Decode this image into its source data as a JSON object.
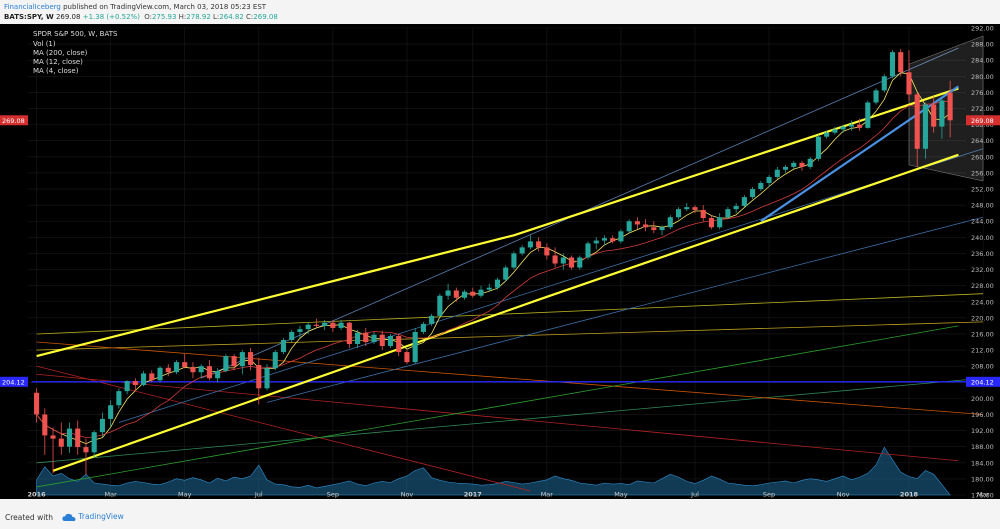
{
  "header": {
    "author": "FinancialIceberg",
    "published": "published on TradingView.com, March 03, 2018 05:23 EST",
    "symbol": "BATS:SPY, W",
    "last": "269.08",
    "change": "+1.38 (+0.52%)",
    "open_label": "O:",
    "open": "275.93",
    "high_label": "H:",
    "high": "278.92",
    "low_label": "L:",
    "low": "264.82",
    "close_label": "C:",
    "close": "269.08"
  },
  "legend": {
    "title": "SPDR S&P 500, W, BATS",
    "items": [
      "Vol (1)",
      "MA (200, close)",
      "MA (12, close)",
      "MA (4, close)"
    ]
  },
  "footer": {
    "created_with": "Created with",
    "brand": "TradingView"
  },
  "colors": {
    "background": "#000000",
    "grid": "#1a1a1a",
    "up": "#26a69a",
    "down": "#ef5350",
    "channel": "#ffff33",
    "trend_blue": "#4a90e2",
    "volume": "#1f6b99",
    "last_price_badge": "#d32f2f",
    "hline_badge": "#2929ff"
  },
  "chart_data": {
    "type": "candlestick",
    "timeframe": "W",
    "y_axis": {
      "min": 176,
      "max": 292,
      "step": 4,
      "side": "right"
    },
    "x_tick_labels": [
      "2016",
      "Mar",
      "May",
      "Jul",
      "Sep",
      "Nov",
      "2017",
      "Mar",
      "May",
      "Jul",
      "Sep",
      "Nov",
      "2018",
      "Mar"
    ],
    "price_badges": [
      {
        "value": 269.08,
        "label": "269.08",
        "color": "#d32f2f"
      },
      {
        "value": 204.12,
        "label": "204.12",
        "color": "#2929ff"
      }
    ],
    "candles": [
      {
        "o": 201.4,
        "h": 202.5,
        "l": 194.0,
        "c": 196.0
      },
      {
        "o": 196.0,
        "h": 197.5,
        "l": 186.0,
        "c": 190.8
      },
      {
        "o": 190.8,
        "h": 192.8,
        "l": 181.3,
        "c": 190.0
      },
      {
        "o": 190.0,
        "h": 194.0,
        "l": 186.0,
        "c": 188.0
      },
      {
        "o": 188.0,
        "h": 194.0,
        "l": 186.5,
        "c": 192.5
      },
      {
        "o": 192.5,
        "h": 194.5,
        "l": 186.0,
        "c": 187.9
      },
      {
        "o": 187.9,
        "h": 190.0,
        "l": 181.0,
        "c": 186.6
      },
      {
        "o": 186.6,
        "h": 192.0,
        "l": 185.3,
        "c": 191.6
      },
      {
        "o": 191.6,
        "h": 196.5,
        "l": 190.5,
        "c": 194.9
      },
      {
        "o": 194.9,
        "h": 199.5,
        "l": 193.0,
        "c": 198.3
      },
      {
        "o": 198.3,
        "h": 202.5,
        "l": 197.5,
        "c": 201.8
      },
      {
        "o": 201.8,
        "h": 204.5,
        "l": 201.0,
        "c": 204.3
      },
      {
        "o": 204.3,
        "h": 205.0,
        "l": 201.8,
        "c": 203.3
      },
      {
        "o": 203.3,
        "h": 206.8,
        "l": 203.0,
        "c": 206.2
      },
      {
        "o": 206.2,
        "h": 207.0,
        "l": 204.0,
        "c": 204.5
      },
      {
        "o": 204.5,
        "h": 208.0,
        "l": 204.0,
        "c": 207.6
      },
      {
        "o": 207.6,
        "h": 208.5,
        "l": 205.5,
        "c": 206.5
      },
      {
        "o": 206.5,
        "h": 209.5,
        "l": 206.0,
        "c": 209.0
      },
      {
        "o": 209.0,
        "h": 211.0,
        "l": 207.5,
        "c": 207.8
      },
      {
        "o": 207.8,
        "h": 209.0,
        "l": 205.0,
        "c": 206.5
      },
      {
        "o": 206.5,
        "h": 208.5,
        "l": 205.0,
        "c": 208.0
      },
      {
        "o": 208.0,
        "h": 209.5,
        "l": 204.5,
        "c": 205.0
      },
      {
        "o": 205.0,
        "h": 207.5,
        "l": 204.0,
        "c": 206.8
      },
      {
        "o": 206.8,
        "h": 211.0,
        "l": 206.5,
        "c": 210.5
      },
      {
        "o": 210.5,
        "h": 211.0,
        "l": 207.0,
        "c": 208.0
      },
      {
        "o": 208.0,
        "h": 212.0,
        "l": 206.0,
        "c": 211.5
      },
      {
        "o": 211.5,
        "h": 212.5,
        "l": 207.0,
        "c": 208.3
      },
      {
        "o": 208.3,
        "h": 210.0,
        "l": 198.5,
        "c": 202.5
      },
      {
        "o": 202.5,
        "h": 208.5,
        "l": 202.0,
        "c": 207.5
      },
      {
        "o": 207.5,
        "h": 212.0,
        "l": 207.0,
        "c": 211.5
      },
      {
        "o": 211.5,
        "h": 215.0,
        "l": 211.0,
        "c": 214.5
      },
      {
        "o": 214.5,
        "h": 217.0,
        "l": 214.0,
        "c": 216.5
      },
      {
        "o": 216.5,
        "h": 218.0,
        "l": 215.0,
        "c": 217.2
      },
      {
        "o": 217.2,
        "h": 219.0,
        "l": 216.0,
        "c": 218.3
      },
      {
        "o": 218.3,
        "h": 219.8,
        "l": 217.5,
        "c": 218.0
      },
      {
        "o": 218.0,
        "h": 219.5,
        "l": 217.0,
        "c": 218.8
      },
      {
        "o": 218.8,
        "h": 219.5,
        "l": 216.5,
        "c": 217.5
      },
      {
        "o": 217.5,
        "h": 219.5,
        "l": 217.0,
        "c": 218.8
      },
      {
        "o": 218.8,
        "h": 219.0,
        "l": 212.5,
        "c": 213.5
      },
      {
        "o": 213.5,
        "h": 217.0,
        "l": 212.5,
        "c": 216.3
      },
      {
        "o": 216.3,
        "h": 217.5,
        "l": 213.0,
        "c": 214.0
      },
      {
        "o": 214.0,
        "h": 216.5,
        "l": 213.5,
        "c": 215.8
      },
      {
        "o": 215.8,
        "h": 216.8,
        "l": 212.0,
        "c": 213.0
      },
      {
        "o": 213.0,
        "h": 216.0,
        "l": 212.5,
        "c": 215.5
      },
      {
        "o": 215.5,
        "h": 216.0,
        "l": 210.5,
        "c": 211.5
      },
      {
        "o": 211.5,
        "h": 212.0,
        "l": 208.5,
        "c": 209.0
      },
      {
        "o": 209.0,
        "h": 217.5,
        "l": 208.5,
        "c": 216.5
      },
      {
        "o": 216.5,
        "h": 219.0,
        "l": 216.0,
        "c": 218.5
      },
      {
        "o": 218.5,
        "h": 221.0,
        "l": 218.0,
        "c": 220.5
      },
      {
        "o": 220.5,
        "h": 226.0,
        "l": 220.0,
        "c": 225.5
      },
      {
        "o": 225.5,
        "h": 228.5,
        "l": 224.5,
        "c": 226.8
      },
      {
        "o": 226.8,
        "h": 227.5,
        "l": 224.0,
        "c": 225.0
      },
      {
        "o": 225.0,
        "h": 227.0,
        "l": 224.5,
        "c": 226.5
      },
      {
        "o": 226.5,
        "h": 227.5,
        "l": 225.0,
        "c": 225.5
      },
      {
        "o": 225.5,
        "h": 228.0,
        "l": 225.0,
        "c": 227.0
      },
      {
        "o": 227.0,
        "h": 228.5,
        "l": 226.5,
        "c": 227.5
      },
      {
        "o": 227.5,
        "h": 230.0,
        "l": 227.0,
        "c": 229.5
      },
      {
        "o": 229.5,
        "h": 233.0,
        "l": 229.0,
        "c": 232.5
      },
      {
        "o": 232.5,
        "h": 236.5,
        "l": 232.0,
        "c": 236.0
      },
      {
        "o": 236.0,
        "h": 238.0,
        "l": 235.5,
        "c": 237.5
      },
      {
        "o": 237.5,
        "h": 240.5,
        "l": 237.0,
        "c": 239.0
      },
      {
        "o": 239.0,
        "h": 240.0,
        "l": 236.5,
        "c": 237.5
      },
      {
        "o": 237.5,
        "h": 238.5,
        "l": 234.5,
        "c": 235.5
      },
      {
        "o": 235.5,
        "h": 237.5,
        "l": 232.5,
        "c": 233.5
      },
      {
        "o": 233.5,
        "h": 236.0,
        "l": 232.0,
        "c": 235.0
      },
      {
        "o": 235.0,
        "h": 235.5,
        "l": 232.0,
        "c": 232.5
      },
      {
        "o": 232.5,
        "h": 235.5,
        "l": 232.0,
        "c": 235.0
      },
      {
        "o": 235.0,
        "h": 239.0,
        "l": 234.5,
        "c": 238.5
      },
      {
        "o": 238.5,
        "h": 240.0,
        "l": 237.0,
        "c": 239.2
      },
      {
        "o": 239.2,
        "h": 240.5,
        "l": 238.0,
        "c": 239.8
      },
      {
        "o": 239.8,
        "h": 240.5,
        "l": 238.5,
        "c": 239.0
      },
      {
        "o": 239.0,
        "h": 242.0,
        "l": 238.5,
        "c": 241.5
      },
      {
        "o": 241.5,
        "h": 244.5,
        "l": 241.0,
        "c": 244.0
      },
      {
        "o": 244.0,
        "h": 245.0,
        "l": 242.0,
        "c": 243.2
      },
      {
        "o": 243.2,
        "h": 244.5,
        "l": 241.5,
        "c": 242.5
      },
      {
        "o": 242.5,
        "h": 244.0,
        "l": 241.0,
        "c": 241.8
      },
      {
        "o": 241.8,
        "h": 243.0,
        "l": 240.5,
        "c": 242.5
      },
      {
        "o": 242.5,
        "h": 245.5,
        "l": 242.0,
        "c": 245.0
      },
      {
        "o": 245.0,
        "h": 247.5,
        "l": 244.5,
        "c": 247.0
      },
      {
        "o": 247.0,
        "h": 248.5,
        "l": 246.5,
        "c": 247.5
      },
      {
        "o": 247.5,
        "h": 248.0,
        "l": 246.0,
        "c": 246.8
      },
      {
        "o": 246.8,
        "h": 248.0,
        "l": 244.0,
        "c": 244.8
      },
      {
        "o": 244.8,
        "h": 245.5,
        "l": 242.0,
        "c": 242.5
      },
      {
        "o": 242.5,
        "h": 246.0,
        "l": 242.0,
        "c": 245.0
      },
      {
        "o": 245.0,
        "h": 247.5,
        "l": 244.5,
        "c": 247.0
      },
      {
        "o": 247.0,
        "h": 248.5,
        "l": 246.0,
        "c": 247.8
      },
      {
        "o": 247.8,
        "h": 250.5,
        "l": 247.5,
        "c": 250.0
      },
      {
        "o": 250.0,
        "h": 252.5,
        "l": 249.5,
        "c": 252.0
      },
      {
        "o": 252.0,
        "h": 254.0,
        "l": 251.5,
        "c": 253.5
      },
      {
        "o": 253.5,
        "h": 255.5,
        "l": 252.5,
        "c": 255.0
      },
      {
        "o": 255.0,
        "h": 257.5,
        "l": 254.5,
        "c": 256.8
      },
      {
        "o": 256.8,
        "h": 258.0,
        "l": 256.0,
        "c": 257.5
      },
      {
        "o": 257.5,
        "h": 259.0,
        "l": 257.0,
        "c": 258.5
      },
      {
        "o": 258.5,
        "h": 259.0,
        "l": 256.5,
        "c": 257.5
      },
      {
        "o": 257.5,
        "h": 260.0,
        "l": 257.0,
        "c": 259.5
      },
      {
        "o": 259.5,
        "h": 265.5,
        "l": 259.0,
        "c": 265.0
      },
      {
        "o": 265.0,
        "h": 266.5,
        "l": 264.5,
        "c": 266.0
      },
      {
        "o": 266.0,
        "h": 267.5,
        "l": 265.5,
        "c": 266.8
      },
      {
        "o": 266.8,
        "h": 268.0,
        "l": 266.0,
        "c": 267.5
      },
      {
        "o": 267.5,
        "h": 269.0,
        "l": 266.5,
        "c": 268.0
      },
      {
        "o": 268.0,
        "h": 269.5,
        "l": 266.5,
        "c": 267.2
      },
      {
        "o": 267.2,
        "h": 274.0,
        "l": 267.0,
        "c": 273.5
      },
      {
        "o": 273.5,
        "h": 277.0,
        "l": 273.0,
        "c": 276.5
      },
      {
        "o": 276.5,
        "h": 280.5,
        "l": 276.0,
        "c": 280.0
      },
      {
        "o": 280.0,
        "h": 286.5,
        "l": 279.5,
        "c": 286.0
      },
      {
        "o": 286.0,
        "h": 286.8,
        "l": 280.0,
        "c": 281.0
      },
      {
        "o": 281.0,
        "h": 286.5,
        "l": 274.0,
        "c": 275.5
      },
      {
        "o": 275.5,
        "h": 276.0,
        "l": 257.5,
        "c": 262.0
      },
      {
        "o": 262.0,
        "h": 273.5,
        "l": 259.5,
        "c": 273.0
      },
      {
        "o": 273.0,
        "h": 275.0,
        "l": 266.0,
        "c": 267.5
      },
      {
        "o": 267.5,
        "h": 274.5,
        "l": 264.5,
        "c": 274.0
      },
      {
        "o": 275.93,
        "h": 278.92,
        "l": 264.82,
        "c": 269.08
      }
    ],
    "volume_profile": [
      0.28,
      0.52,
      0.35,
      0.4,
      0.3,
      0.25,
      0.38,
      0.22,
      0.2,
      0.18,
      0.17,
      0.22,
      0.25,
      0.23,
      0.2,
      0.19,
      0.24,
      0.3,
      0.27,
      0.32,
      0.28,
      0.22,
      0.31,
      0.26,
      0.33,
      0.3,
      0.35,
      0.55,
      0.28,
      0.2,
      0.19,
      0.15,
      0.14,
      0.18,
      0.13,
      0.16,
      0.19,
      0.22,
      0.26,
      0.2,
      0.17,
      0.22,
      0.25,
      0.23,
      0.3,
      0.35,
      0.45,
      0.5,
      0.32,
      0.27,
      0.24,
      0.22,
      0.21,
      0.2,
      0.18,
      0.19,
      0.21,
      0.25,
      0.23,
      0.2,
      0.22,
      0.25,
      0.28,
      0.35,
      0.3,
      0.27,
      0.22,
      0.2,
      0.18,
      0.22,
      0.2,
      0.21,
      0.19,
      0.26,
      0.24,
      0.22,
      0.3,
      0.38,
      0.33,
      0.25,
      0.21,
      0.27,
      0.35,
      0.29,
      0.22,
      0.2,
      0.18,
      0.17,
      0.19,
      0.22,
      0.24,
      0.26,
      0.22,
      0.27,
      0.3,
      0.28,
      0.25,
      0.3,
      0.35,
      0.28,
      0.33,
      0.4,
      0.55,
      0.88,
      0.65,
      0.42,
      0.34,
      0.3,
      0.45,
      0.38
    ],
    "annotations": {
      "channel_upper": [
        [
          0,
          210.5
        ],
        [
          58,
          240.5
        ],
        [
          112,
          277.0
        ]
      ],
      "channel_lower": [
        [
          2,
          182.0
        ],
        [
          61,
          224.5
        ],
        [
          112,
          260.5
        ]
      ],
      "trend_blue": [
        [
          88,
          244.0
        ],
        [
          112,
          277.5
        ]
      ]
    }
  }
}
